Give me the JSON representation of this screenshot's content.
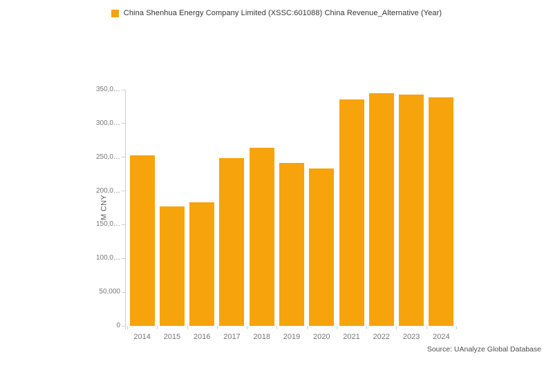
{
  "legend": {
    "label": "China Shenhua Energy Company Limited (XSSC:601088) China Revenue_Alternative (Year)"
  },
  "source": "Source: UAnalyze Global Database",
  "colors": {
    "bar": "#F7A30B",
    "axis": "#cccccc",
    "tick_label": "#757575",
    "legend_text": "#333333",
    "source_text": "#4d4d4d"
  },
  "chart_data": {
    "type": "bar",
    "title": "",
    "series_name": "China Shenhua Energy Company Limited (XSSC:601088) China Revenue_Alternative (Year)",
    "categories": [
      "2014",
      "2015",
      "2016",
      "2017",
      "2018",
      "2019",
      "2020",
      "2021",
      "2022",
      "2023",
      "2024"
    ],
    "values": [
      253000,
      177000,
      183000,
      248700,
      264100,
      241900,
      233300,
      335200,
      344500,
      343100,
      339000
    ],
    "unit": "M CNY",
    "ylabel": "M CNY",
    "xlabel": "",
    "ylim": [
      0,
      350000
    ],
    "grid": false,
    "legend_position": "top-center",
    "yticks": [
      {
        "value": 0,
        "label": "0"
      },
      {
        "value": 50000,
        "label": "50,000"
      },
      {
        "value": 100000,
        "label": "100,0…"
      },
      {
        "value": 150000,
        "label": "150,0…"
      },
      {
        "value": 200000,
        "label": "200,0…"
      },
      {
        "value": 250000,
        "label": "250,0…"
      },
      {
        "value": 300000,
        "label": "300,0…"
      },
      {
        "value": 350000,
        "label": "350,0…"
      }
    ]
  }
}
